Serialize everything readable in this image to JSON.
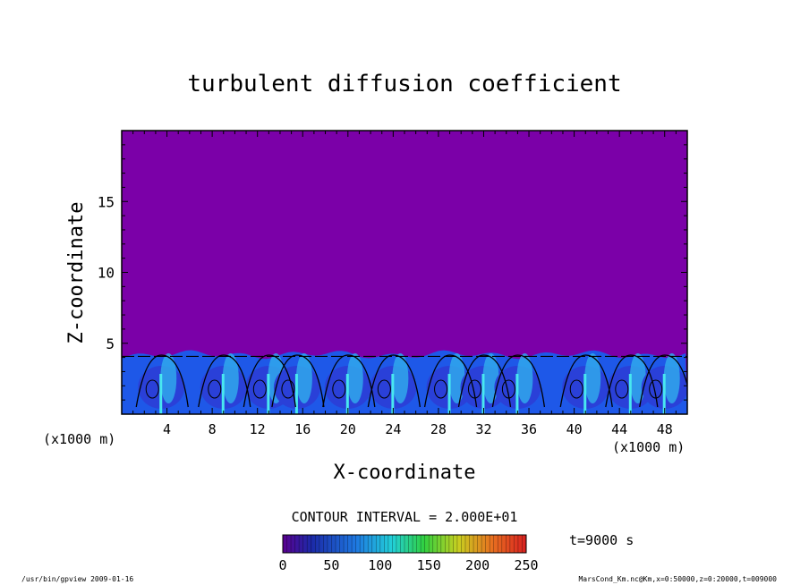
{
  "chart_data": {
    "type": "heatmap",
    "title": "turbulent diffusion coefficient",
    "xlabel": "X-coordinate",
    "ylabel": "Z-coordinate",
    "x_unit_left": "(x1000 m)",
    "x_unit_right": "(x1000 m)",
    "xlim": [
      0,
      50
    ],
    "ylim": [
      0,
      20
    ],
    "x_ticks": [
      4,
      8,
      12,
      16,
      20,
      24,
      28,
      32,
      36,
      40,
      44,
      48
    ],
    "y_ticks": [
      5,
      10,
      15
    ],
    "contour_interval_label": "CONTOUR INTERVAL = 2.000E+01",
    "time_label": "t=9000 s",
    "colorbar": {
      "min": 0,
      "max": 250,
      "ticks": [
        0,
        50,
        100,
        150,
        200,
        250
      ]
    },
    "background_value_color": "#7b00a8",
    "boundary_layer_top_km": 4.2,
    "plume_centers_km": [
      3.5,
      9,
      13,
      15.5,
      20,
      24,
      29,
      32,
      35,
      41,
      45,
      48
    ]
  },
  "footer": {
    "left": "/usr/bin/gpview   2009-01-16",
    "right": "MarsCond_Km.nc@Km,x=0:50000,z=0:20000,t=009000"
  }
}
